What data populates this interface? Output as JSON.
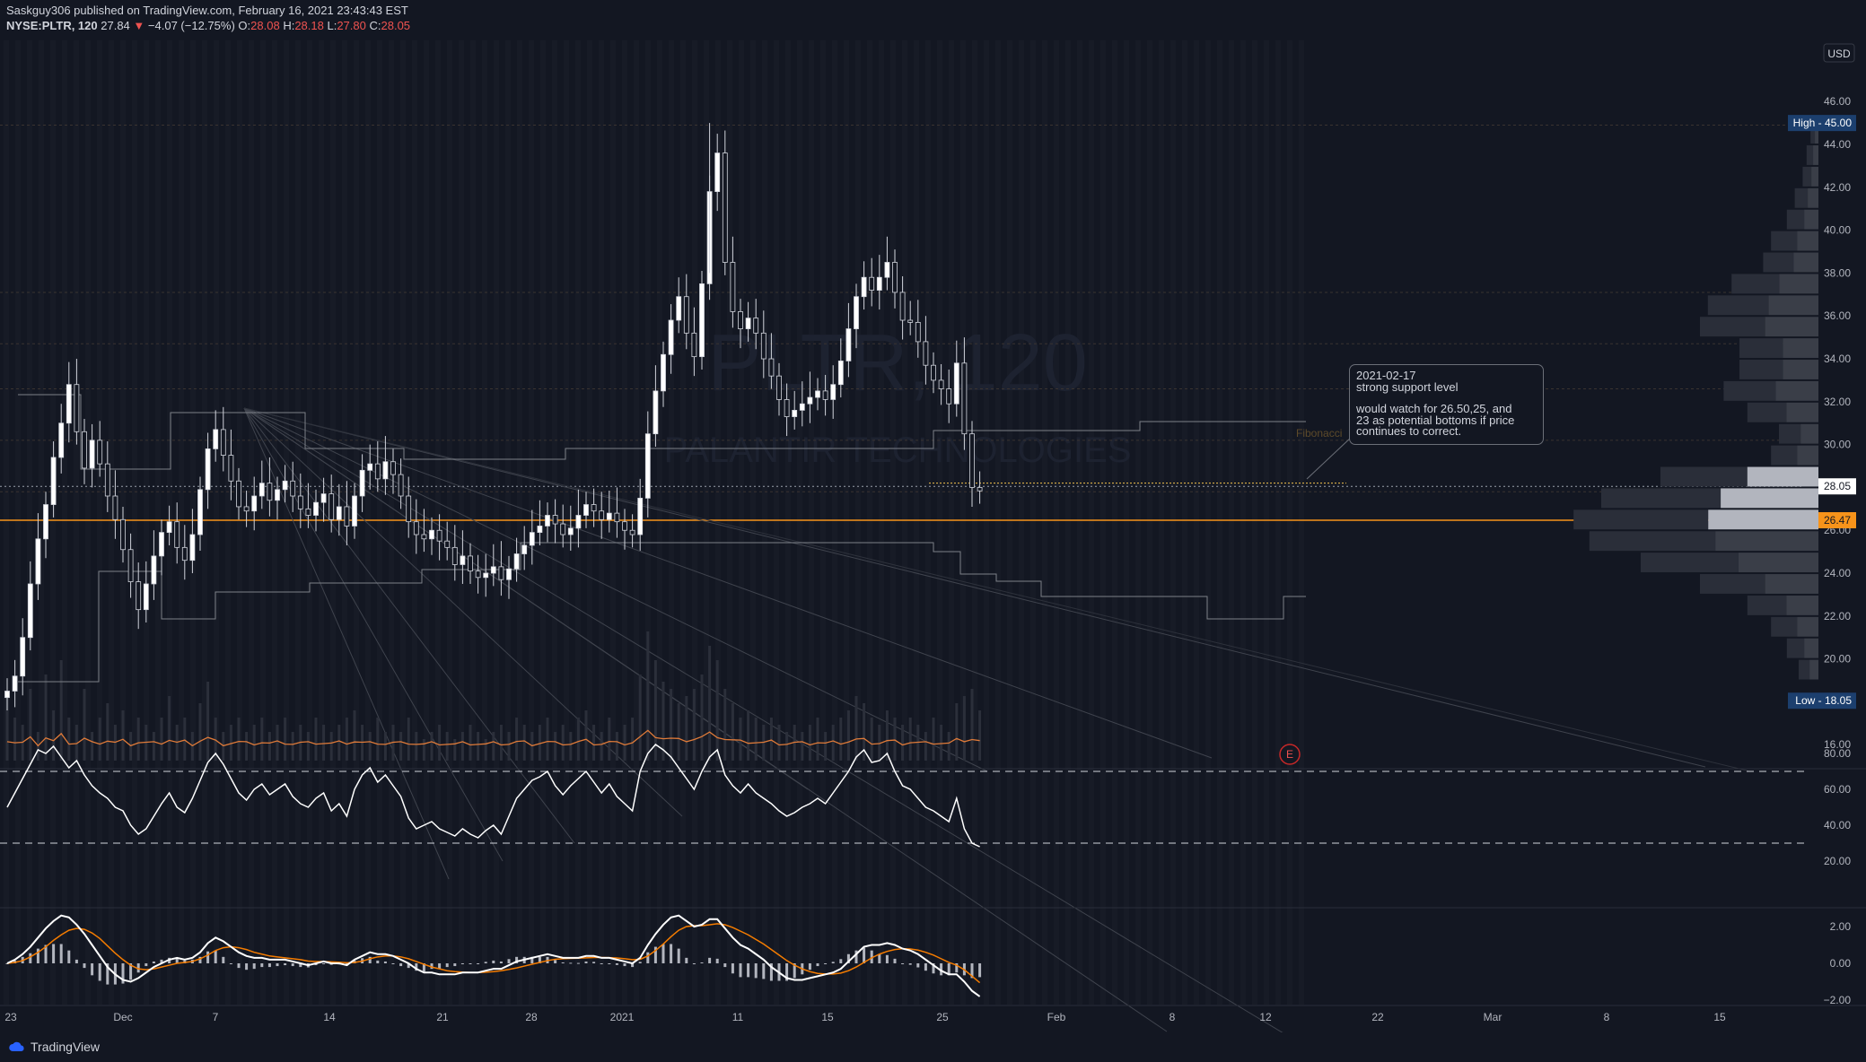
{
  "header": {
    "publisher_line": "Saskguy306 published on TradingView.com, February 16, 2021 23:43:43 EST",
    "publisher": "Saskguy306",
    "symbol": "NYSE:PLTR, 120",
    "last": "27.84",
    "change": "−4.07 (−12.75%)",
    "o_label": "O:",
    "o": "28.08",
    "h_label": "H:",
    "h": "28.18",
    "l_label": "L:",
    "l": "27.80",
    "c_label": "C:",
    "c": "28.05"
  },
  "watermark": {
    "ticker": "PLTR, 120",
    "name": "PALANTIR TECHNOLOGIES"
  },
  "currency": "USD",
  "annotation": {
    "line1": "2021-02-17",
    "line2": "strong support level",
    "line3": "would watch for 26.50,25, and",
    "line4": "23 as potential bottoms if price",
    "line5": "continues to correct."
  },
  "fib_label": "Fibonacci",
  "earnings_marker": "E",
  "footer": {
    "brand": "TradingView"
  },
  "colors": {
    "background": "#131722",
    "price_tag": "#ffffff",
    "support": "#f7931a",
    "rsi": "#ffffff",
    "macd": "#ffffff",
    "signal": "#f57c00",
    "extreme_tag": "#1e3a5f"
  },
  "chart_data": [
    {
      "type": "candlestick",
      "title": "NYSE:PLTR, 120",
      "y_axis_labels": [
        "46.00",
        "44.00",
        "42.00",
        "40.00",
        "38.00",
        "36.00",
        "34.00",
        "32.00",
        "30.00",
        "28.00",
        "26.00",
        "24.00",
        "22.00",
        "20.00",
        "16.00"
      ],
      "ylim": [
        14.8,
        48.0
      ],
      "x_tick_labels": [
        "23",
        "Dec",
        "7",
        "14",
        "21",
        "28",
        "2021",
        "11",
        "15",
        "25",
        "Feb",
        "8",
        "12",
        "22",
        "Mar",
        "8",
        "15"
      ],
      "price_tags": {
        "high": "High - 45.00",
        "last": "28.05",
        "support": "26.47",
        "low": "Low - 18.05"
      },
      "high": 45.0,
      "low": 18.05,
      "last": 28.05,
      "support": 26.47,
      "close_series": [
        18.5,
        19.2,
        21.0,
        23.5,
        25.6,
        27.2,
        29.4,
        31.0,
        32.8,
        30.6,
        28.9,
        30.2,
        29.1,
        27.6,
        26.5,
        25.1,
        23.6,
        22.3,
        23.5,
        24.8,
        25.9,
        26.4,
        25.2,
        24.6,
        25.8,
        27.9,
        29.8,
        30.7,
        29.5,
        28.3,
        27.1,
        26.9,
        27.6,
        28.2,
        27.4,
        27.9,
        28.3,
        27.6,
        27.0,
        26.7,
        27.3,
        27.7,
        26.5,
        27.1,
        26.2,
        27.6,
        28.8,
        29.1,
        28.4,
        29.2,
        28.6,
        27.6,
        26.4,
        25.8,
        25.6,
        26.0,
        25.5,
        25.2,
        24.4,
        24.8,
        24.1,
        23.8,
        24.0,
        24.3,
        23.7,
        24.2,
        24.9,
        25.3,
        25.9,
        26.2,
        26.7,
        26.3,
        25.8,
        26.1,
        26.7,
        27.2,
        26.9,
        26.5,
        26.8,
        26.4,
        26.0,
        25.8,
        27.5,
        30.5,
        32.5,
        34.2,
        35.8,
        36.9,
        35.2,
        34.1,
        37.5,
        41.8,
        43.6,
        38.5,
        36.2,
        35.4,
        35.9,
        35.2,
        34.0,
        33.2,
        32.1,
        31.3,
        31.6,
        31.9,
        32.2,
        32.5,
        32.1,
        32.8,
        33.9,
        35.4,
        36.9,
        37.8,
        37.2,
        37.8,
        38.5,
        37.1,
        35.8,
        35.7,
        34.8,
        33.7,
        33.0,
        32.6,
        31.9,
        33.8,
        30.5,
        28.0,
        27.84
      ],
      "volume_rel": [
        0.45,
        0.3,
        0.25,
        0.5,
        0.2,
        0.6,
        0.35,
        0.7,
        0.3,
        0.25,
        0.5,
        0.2,
        0.3,
        0.4,
        0.25,
        0.35,
        0.2,
        0.3,
        0.25,
        0.2,
        0.3,
        0.45,
        0.25,
        0.3,
        0.2,
        0.4,
        0.55,
        0.3,
        0.2,
        0.25,
        0.3,
        0.2,
        0.25,
        0.3,
        0.2,
        0.25,
        0.3,
        0.2,
        0.25,
        0.2,
        0.3,
        0.25,
        0.2,
        0.25,
        0.3,
        0.35,
        0.25,
        0.2,
        0.3,
        0.2,
        0.25,
        0.2,
        0.3,
        0.2,
        0.15,
        0.2,
        0.25,
        0.2,
        0.15,
        0.2,
        0.25,
        0.2,
        0.15,
        0.2,
        0.25,
        0.2,
        0.3,
        0.25,
        0.2,
        0.25,
        0.3,
        0.2,
        0.25,
        0.2,
        0.3,
        0.35,
        0.25,
        0.2,
        0.3,
        0.2,
        0.25,
        0.3,
        0.6,
        0.9,
        0.7,
        0.55,
        0.5,
        0.4,
        0.45,
        0.5,
        0.6,
        0.8,
        0.7,
        0.5,
        0.4,
        0.3,
        0.35,
        0.3,
        0.25,
        0.3,
        0.25,
        0.2,
        0.25,
        0.2,
        0.25,
        0.3,
        0.2,
        0.25,
        0.3,
        0.35,
        0.45,
        0.4,
        0.3,
        0.25,
        0.35,
        0.3,
        0.25,
        0.3,
        0.25,
        0.2,
        0.3,
        0.25,
        0.2,
        0.4,
        0.45,
        0.5,
        0.35
      ]
    },
    {
      "type": "line",
      "title": "RSI",
      "y_axis_labels": [
        "80.00",
        "60.00",
        "40.00",
        "20.00"
      ],
      "ylim": [
        15,
        90
      ],
      "bands": [
        70,
        30
      ],
      "values": [
        50,
        58,
        66,
        74,
        82,
        80,
        84,
        78,
        72,
        76,
        68,
        62,
        58,
        55,
        50,
        48,
        40,
        35,
        38,
        45,
        52,
        58,
        50,
        47,
        55,
        65,
        75,
        80,
        74,
        66,
        58,
        54,
        60,
        63,
        57,
        60,
        63,
        56,
        52,
        50,
        55,
        58,
        48,
        52,
        45,
        60,
        68,
        72,
        64,
        68,
        62,
        56,
        44,
        38,
        40,
        42,
        38,
        36,
        34,
        38,
        35,
        33,
        37,
        40,
        35,
        45,
        55,
        60,
        65,
        67,
        70,
        62,
        57,
        62,
        66,
        70,
        64,
        58,
        63,
        56,
        52,
        48,
        70,
        80,
        85,
        82,
        78,
        72,
        66,
        60,
        70,
        78,
        82,
        68,
        62,
        58,
        63,
        58,
        55,
        52,
        48,
        45,
        47,
        50,
        52,
        55,
        52,
        58,
        64,
        70,
        78,
        82,
        75,
        76,
        80,
        70,
        62,
        60,
        55,
        50,
        48,
        45,
        42,
        55,
        38,
        30,
        28
      ]
    },
    {
      "type": "line",
      "title": "MACD",
      "y_axis_labels": [
        "2.00",
        "0.00",
        "−2.00"
      ],
      "ylim": [
        -2.6,
        2.8
      ],
      "macd": [
        0.0,
        0.2,
        0.5,
        0.9,
        1.4,
        1.9,
        2.3,
        2.6,
        2.5,
        2.1,
        1.6,
        1.0,
        0.4,
        -0.2,
        -0.6,
        -0.9,
        -1.0,
        -0.8,
        -0.5,
        -0.2,
        0.0,
        0.2,
        0.3,
        0.2,
        0.3,
        0.6,
        1.1,
        1.4,
        1.2,
        0.9,
        0.6,
        0.4,
        0.3,
        0.3,
        0.2,
        0.2,
        0.2,
        0.1,
        0.0,
        -0.1,
        0.0,
        0.1,
        0.0,
        0.0,
        -0.1,
        0.2,
        0.4,
        0.6,
        0.5,
        0.5,
        0.4,
        0.2,
        0.0,
        -0.3,
        -0.5,
        -0.5,
        -0.6,
        -0.6,
        -0.6,
        -0.5,
        -0.5,
        -0.5,
        -0.4,
        -0.3,
        -0.3,
        -0.1,
        0.1,
        0.2,
        0.3,
        0.4,
        0.5,
        0.4,
        0.3,
        0.3,
        0.3,
        0.4,
        0.4,
        0.3,
        0.3,
        0.2,
        0.1,
        0.0,
        0.3,
        1.0,
        1.6,
        2.1,
        2.5,
        2.6,
        2.3,
        2.0,
        2.1,
        2.4,
        2.4,
        1.9,
        1.4,
        1.0,
        0.8,
        0.5,
        0.2,
        -0.2,
        -0.5,
        -0.8,
        -0.9,
        -0.9,
        -0.8,
        -0.7,
        -0.6,
        -0.5,
        -0.3,
        0.1,
        0.5,
        0.9,
        1.0,
        1.0,
        1.1,
        1.0,
        0.8,
        0.7,
        0.5,
        0.2,
        -0.1,
        -0.4,
        -0.6,
        -0.6,
        -1.0,
        -1.5,
        -1.8
      ],
      "signal": [
        0.0,
        0.05,
        0.15,
        0.35,
        0.6,
        0.9,
        1.25,
        1.55,
        1.8,
        1.9,
        1.85,
        1.65,
        1.35,
        0.95,
        0.55,
        0.2,
        -0.1,
        -0.3,
        -0.35,
        -0.3,
        -0.2,
        -0.1,
        0.0,
        0.05,
        0.1,
        0.25,
        0.45,
        0.7,
        0.85,
        0.9,
        0.85,
        0.75,
        0.6,
        0.5,
        0.4,
        0.35,
        0.3,
        0.25,
        0.2,
        0.12,
        0.1,
        0.1,
        0.08,
        0.06,
        0.03,
        0.05,
        0.12,
        0.25,
        0.35,
        0.4,
        0.4,
        0.35,
        0.25,
        0.1,
        -0.05,
        -0.2,
        -0.3,
        -0.4,
        -0.45,
        -0.48,
        -0.5,
        -0.5,
        -0.48,
        -0.45,
        -0.4,
        -0.33,
        -0.25,
        -0.15,
        -0.05,
        0.05,
        0.15,
        0.22,
        0.25,
        0.27,
        0.28,
        0.3,
        0.32,
        0.32,
        0.31,
        0.29,
        0.25,
        0.2,
        0.22,
        0.4,
        0.7,
        1.05,
        1.45,
        1.8,
        2.0,
        2.05,
        2.05,
        2.1,
        2.15,
        2.1,
        1.95,
        1.75,
        1.55,
        1.3,
        1.05,
        0.75,
        0.45,
        0.15,
        -0.1,
        -0.3,
        -0.45,
        -0.55,
        -0.58,
        -0.58,
        -0.53,
        -0.4,
        -0.2,
        0.05,
        0.3,
        0.5,
        0.65,
        0.75,
        0.8,
        0.78,
        0.72,
        0.6,
        0.45,
        0.25,
        0.05,
        -0.1,
        -0.35,
        -0.7,
        -1.05
      ]
    }
  ]
}
